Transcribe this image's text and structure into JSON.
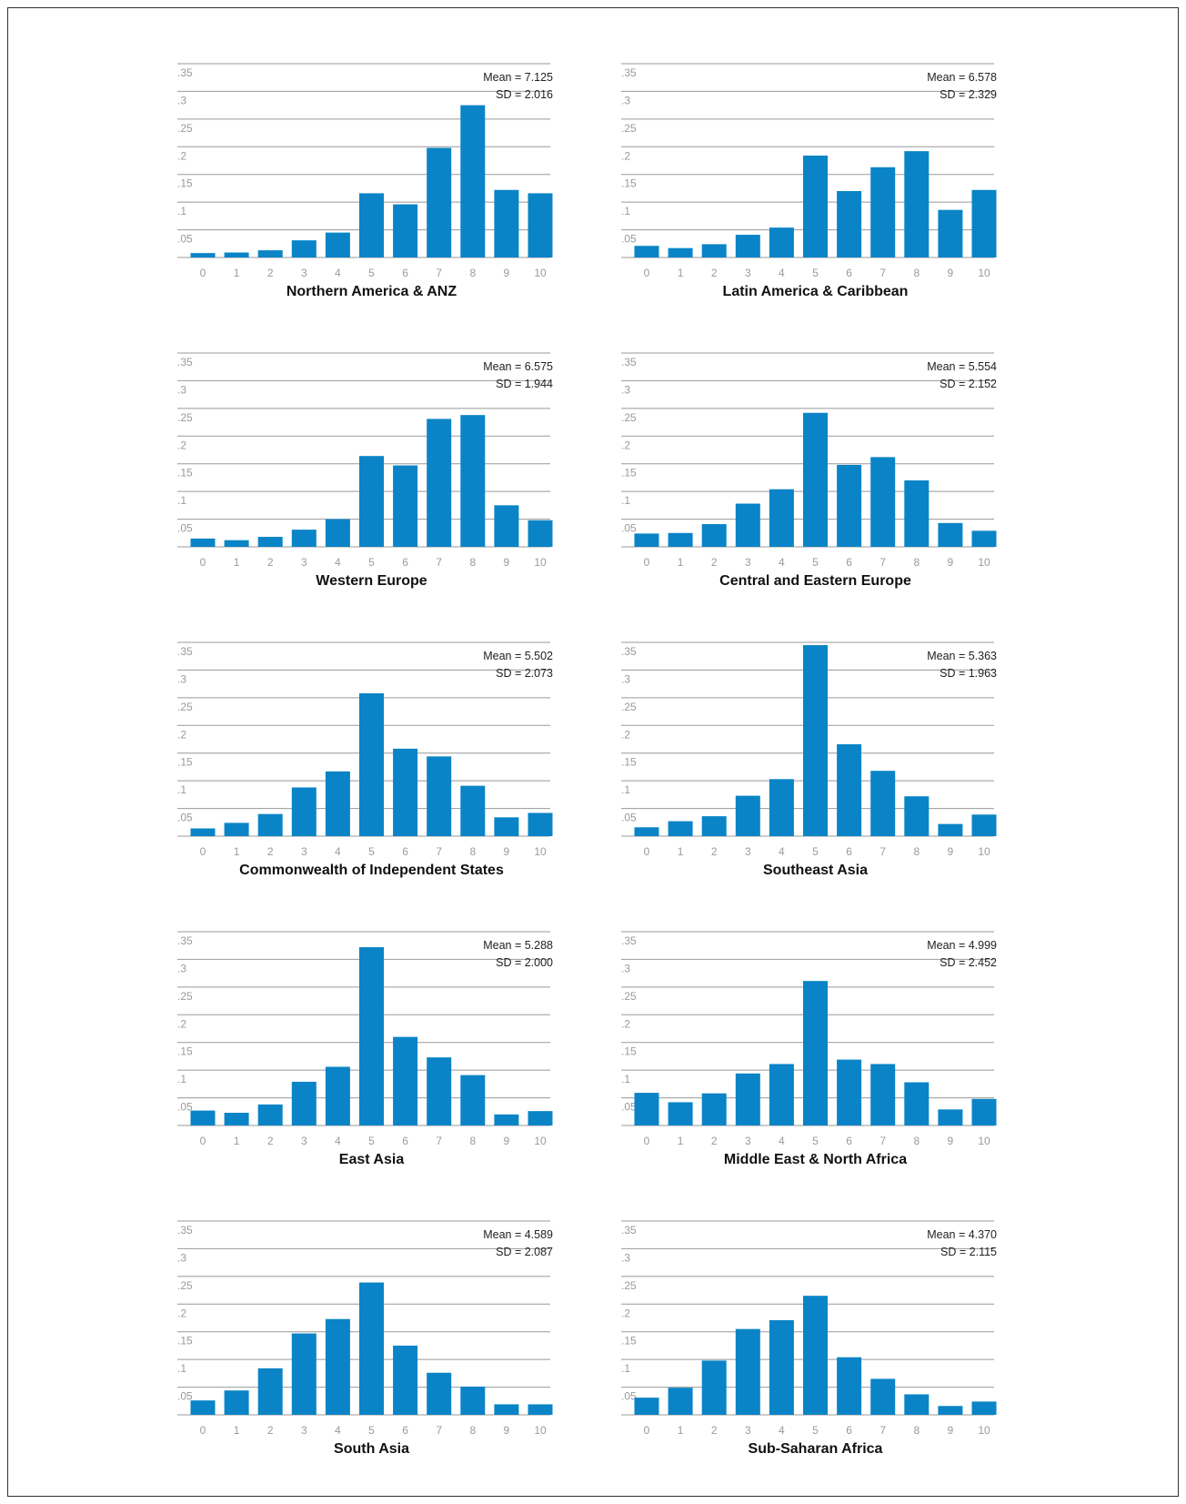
{
  "colors": {
    "bar": "#0a84c6",
    "grid": "#999999",
    "tick": "#9a9a9a"
  },
  "chart_data": [
    {
      "type": "bar",
      "title": "Northern America & ANZ",
      "mean_label": "Mean = 7.125",
      "sd_label": "SD = 2.016",
      "categories": [
        "0",
        "1",
        "2",
        "3",
        "4",
        "5",
        "6",
        "7",
        "8",
        "9",
        "10"
      ],
      "yticks": [
        ".05",
        ".1",
        ".15",
        ".2",
        ".25",
        ".3",
        ".35"
      ],
      "ylim": [
        0,
        0.35
      ],
      "values": [
        0.008,
        0.009,
        0.013,
        0.031,
        0.045,
        0.116,
        0.096,
        0.198,
        0.275,
        0.122,
        0.116
      ]
    },
    {
      "type": "bar",
      "title": "Latin America & Caribbean",
      "mean_label": "Mean = 6.578",
      "sd_label": "SD = 2.329",
      "categories": [
        "0",
        "1",
        "2",
        "3",
        "4",
        "5",
        "6",
        "7",
        "8",
        "9",
        "10"
      ],
      "yticks": [
        ".05",
        ".1",
        ".15",
        ".2",
        ".25",
        ".3",
        ".35"
      ],
      "ylim": [
        0,
        0.35
      ],
      "values": [
        0.021,
        0.017,
        0.024,
        0.041,
        0.054,
        0.184,
        0.12,
        0.163,
        0.192,
        0.086,
        0.122
      ]
    },
    {
      "type": "bar",
      "title": "Western Europe",
      "mean_label": "Mean = 6.575",
      "sd_label": "SD = 1.944",
      "categories": [
        "0",
        "1",
        "2",
        "3",
        "4",
        "5",
        "6",
        "7",
        "8",
        "9",
        "10"
      ],
      "yticks": [
        ".05",
        ".1",
        ".15",
        ".2",
        ".25",
        ".3",
        ".35"
      ],
      "ylim": [
        0,
        0.35
      ],
      "values": [
        0.015,
        0.012,
        0.018,
        0.031,
        0.05,
        0.164,
        0.147,
        0.231,
        0.238,
        0.075,
        0.048
      ]
    },
    {
      "type": "bar",
      "title": "Central and Eastern Europe",
      "mean_label": "Mean = 5.554",
      "sd_label": "SD = 2.152",
      "categories": [
        "0",
        "1",
        "2",
        "3",
        "4",
        "5",
        "6",
        "7",
        "8",
        "9",
        "10"
      ],
      "yticks": [
        ".05",
        ".1",
        ".15",
        ".2",
        ".25",
        ".3",
        ".35"
      ],
      "ylim": [
        0,
        0.35
      ],
      "values": [
        0.024,
        0.025,
        0.041,
        0.078,
        0.104,
        0.242,
        0.148,
        0.162,
        0.12,
        0.043,
        0.029
      ]
    },
    {
      "type": "bar",
      "title": "Commonwealth of Independent States",
      "mean_label": "Mean = 5.502",
      "sd_label": "SD = 2.073",
      "categories": [
        "0",
        "1",
        "2",
        "3",
        "4",
        "5",
        "6",
        "7",
        "8",
        "9",
        "10"
      ],
      "yticks": [
        ".05",
        ".1",
        ".15",
        ".2",
        ".25",
        ".3",
        ".35"
      ],
      "ylim": [
        0,
        0.35
      ],
      "values": [
        0.014,
        0.024,
        0.04,
        0.088,
        0.117,
        0.258,
        0.158,
        0.144,
        0.091,
        0.034,
        0.042
      ]
    },
    {
      "type": "bar",
      "title": "Southeast Asia",
      "mean_label": "Mean = 5.363",
      "sd_label": "SD = 1.963",
      "categories": [
        "0",
        "1",
        "2",
        "3",
        "4",
        "5",
        "6",
        "7",
        "8",
        "9",
        "10"
      ],
      "yticks": [
        ".05",
        ".1",
        ".15",
        ".2",
        ".25",
        ".3",
        ".35"
      ],
      "ylim": [
        0,
        0.35
      ],
      "values": [
        0.016,
        0.027,
        0.036,
        0.073,
        0.103,
        0.345,
        0.166,
        0.118,
        0.072,
        0.022,
        0.039
      ]
    },
    {
      "type": "bar",
      "title": "East Asia",
      "mean_label": "Mean = 5.288",
      "sd_label": "SD = 2.000",
      "categories": [
        "0",
        "1",
        "2",
        "3",
        "4",
        "5",
        "6",
        "7",
        "8",
        "9",
        "10"
      ],
      "yticks": [
        ".05",
        ".1",
        ".15",
        ".2",
        ".25",
        ".3",
        ".35"
      ],
      "ylim": [
        0,
        0.35
      ],
      "values": [
        0.027,
        0.023,
        0.038,
        0.079,
        0.106,
        0.322,
        0.16,
        0.123,
        0.091,
        0.02,
        0.026
      ]
    },
    {
      "type": "bar",
      "title": "Middle East & North Africa",
      "mean_label": "Mean = 4.999",
      "sd_label": "SD = 2.452",
      "categories": [
        "0",
        "1",
        "2",
        "3",
        "4",
        "5",
        "6",
        "7",
        "8",
        "9",
        "10"
      ],
      "yticks": [
        ".05",
        ".1",
        ".15",
        ".2",
        ".25",
        ".3",
        ".35"
      ],
      "ylim": [
        0,
        0.35
      ],
      "values": [
        0.059,
        0.042,
        0.058,
        0.094,
        0.111,
        0.261,
        0.119,
        0.111,
        0.078,
        0.029,
        0.048
      ]
    },
    {
      "type": "bar",
      "title": "South Asia",
      "mean_label": "Mean = 4.589",
      "sd_label": "SD = 2.087",
      "categories": [
        "0",
        "1",
        "2",
        "3",
        "4",
        "5",
        "6",
        "7",
        "8",
        "9",
        "10"
      ],
      "yticks": [
        ".05",
        ".1",
        ".15",
        ".2",
        ".25",
        ".3",
        ".35"
      ],
      "ylim": [
        0,
        0.35
      ],
      "values": [
        0.026,
        0.044,
        0.084,
        0.147,
        0.173,
        0.239,
        0.125,
        0.076,
        0.051,
        0.019,
        0.019
      ]
    },
    {
      "type": "bar",
      "title": "Sub-Saharan Africa",
      "mean_label": "Mean = 4.370",
      "sd_label": "SD = 2.115",
      "categories": [
        "0",
        "1",
        "2",
        "3",
        "4",
        "5",
        "6",
        "7",
        "8",
        "9",
        "10"
      ],
      "yticks": [
        ".05",
        ".1",
        ".15",
        ".2",
        ".25",
        ".3",
        ".35"
      ],
      "ylim": [
        0,
        0.35
      ],
      "values": [
        0.031,
        0.049,
        0.098,
        0.155,
        0.171,
        0.215,
        0.104,
        0.065,
        0.037,
        0.016,
        0.024
      ]
    }
  ]
}
